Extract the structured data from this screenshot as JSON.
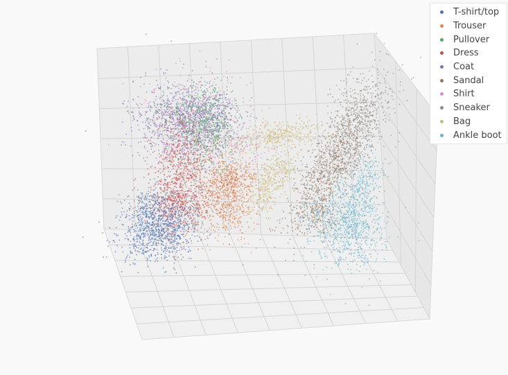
{
  "chart_data": {
    "type": "scatter",
    "title": "",
    "projection": "3d",
    "grid": true,
    "legend_placement": "top-right",
    "series": [
      {
        "name": "T-shirt/top",
        "color": "#4c72b0"
      },
      {
        "name": "Trouser",
        "color": "#dd8452"
      },
      {
        "name": "Pullover",
        "color": "#55a868"
      },
      {
        "name": "Dress",
        "color": "#c44e52"
      },
      {
        "name": "Coat",
        "color": "#8172b3"
      },
      {
        "name": "Sandal",
        "color": "#937860"
      },
      {
        "name": "Shirt",
        "color": "#da8bc3"
      },
      {
        "name": "Sneaker",
        "color": "#8c8c8c"
      },
      {
        "name": "Bag",
        "color": "#ccb974"
      },
      {
        "name": "Ankle boot",
        "color": "#64b5cd"
      }
    ]
  },
  "legend": {
    "items": [
      "T-shirt/top",
      "Trouser",
      "Pullover",
      "Dress",
      "Coat",
      "Sandal",
      "Shirt",
      "Sneaker",
      "Bag",
      "Ankle boot"
    ]
  }
}
